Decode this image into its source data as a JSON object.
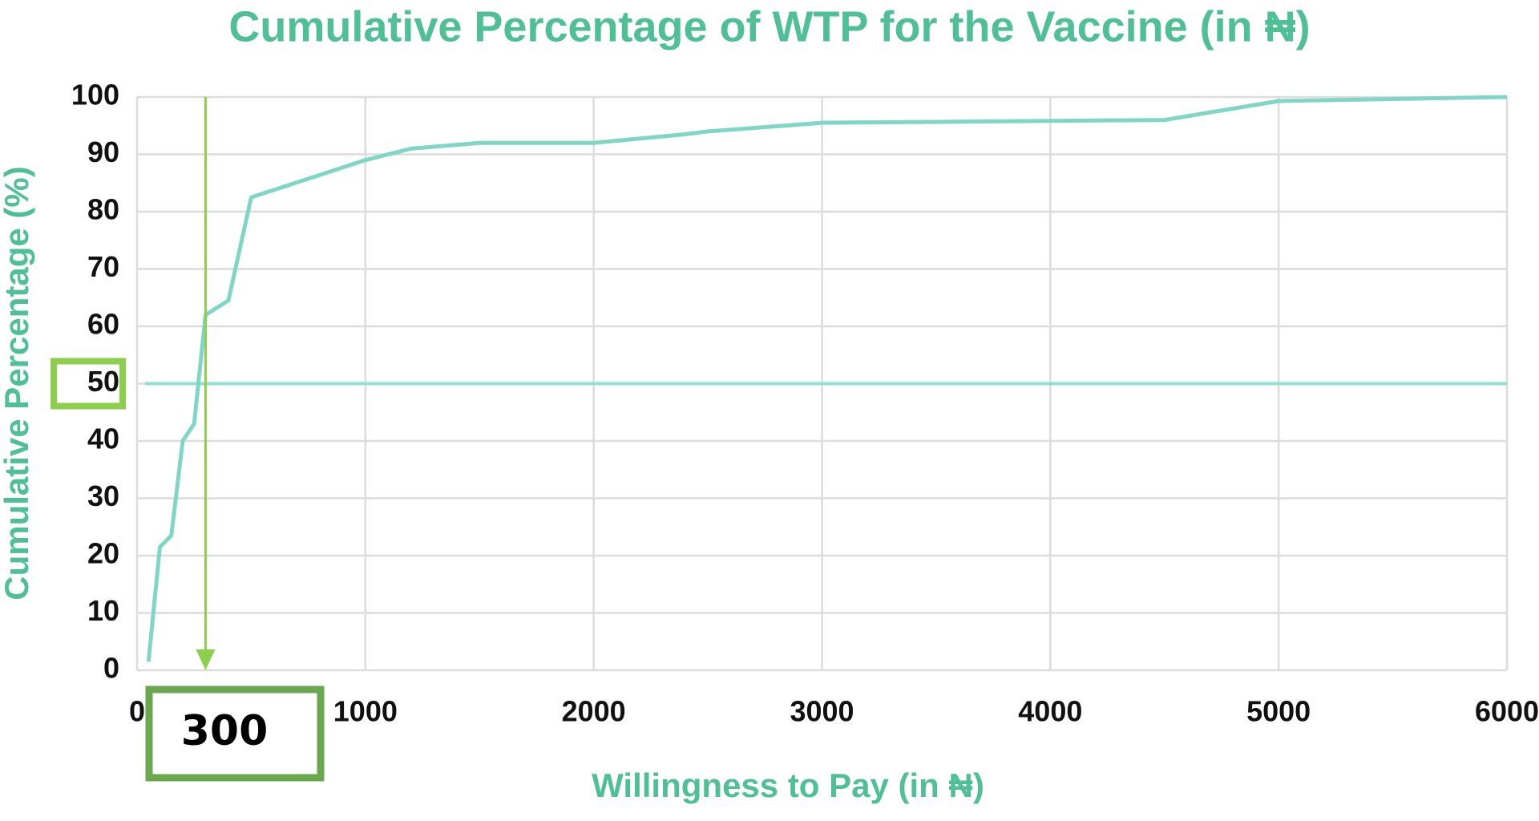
{
  "chart_data": {
    "type": "line",
    "title": "Cumulative Percentage of WTP for the Vaccine (in ₦)",
    "x_label": "Willingness to Pay (in ₦)",
    "y_label": "Cumulative Percentage (%)",
    "series": [
      {
        "name": "Cumulative Percentage",
        "color": "#7fd6c6",
        "x": [
          50,
          100,
          150,
          200,
          250,
          300,
          400,
          500,
          1000,
          1200,
          1500,
          2000,
          2400,
          2500,
          3000,
          4500,
          5000,
          6000
        ],
        "values": [
          1.5,
          21.5,
          23.5,
          40,
          43,
          62,
          64.5,
          82.5,
          89,
          91,
          92,
          92,
          93.5,
          94,
          95.5,
          96,
          99.3,
          100
        ]
      }
    ],
    "xlim": [
      0,
      6000
    ],
    "xticks": [
      0,
      1000,
      2000,
      3000,
      4000,
      5000,
      6000
    ],
    "ylim": [
      0,
      100
    ],
    "yticks": [
      0,
      10,
      20,
      30,
      40,
      50,
      60,
      70,
      80,
      90,
      100
    ],
    "grid": true,
    "hline": 50,
    "vline": {
      "value": 300,
      "label": "300"
    }
  }
}
